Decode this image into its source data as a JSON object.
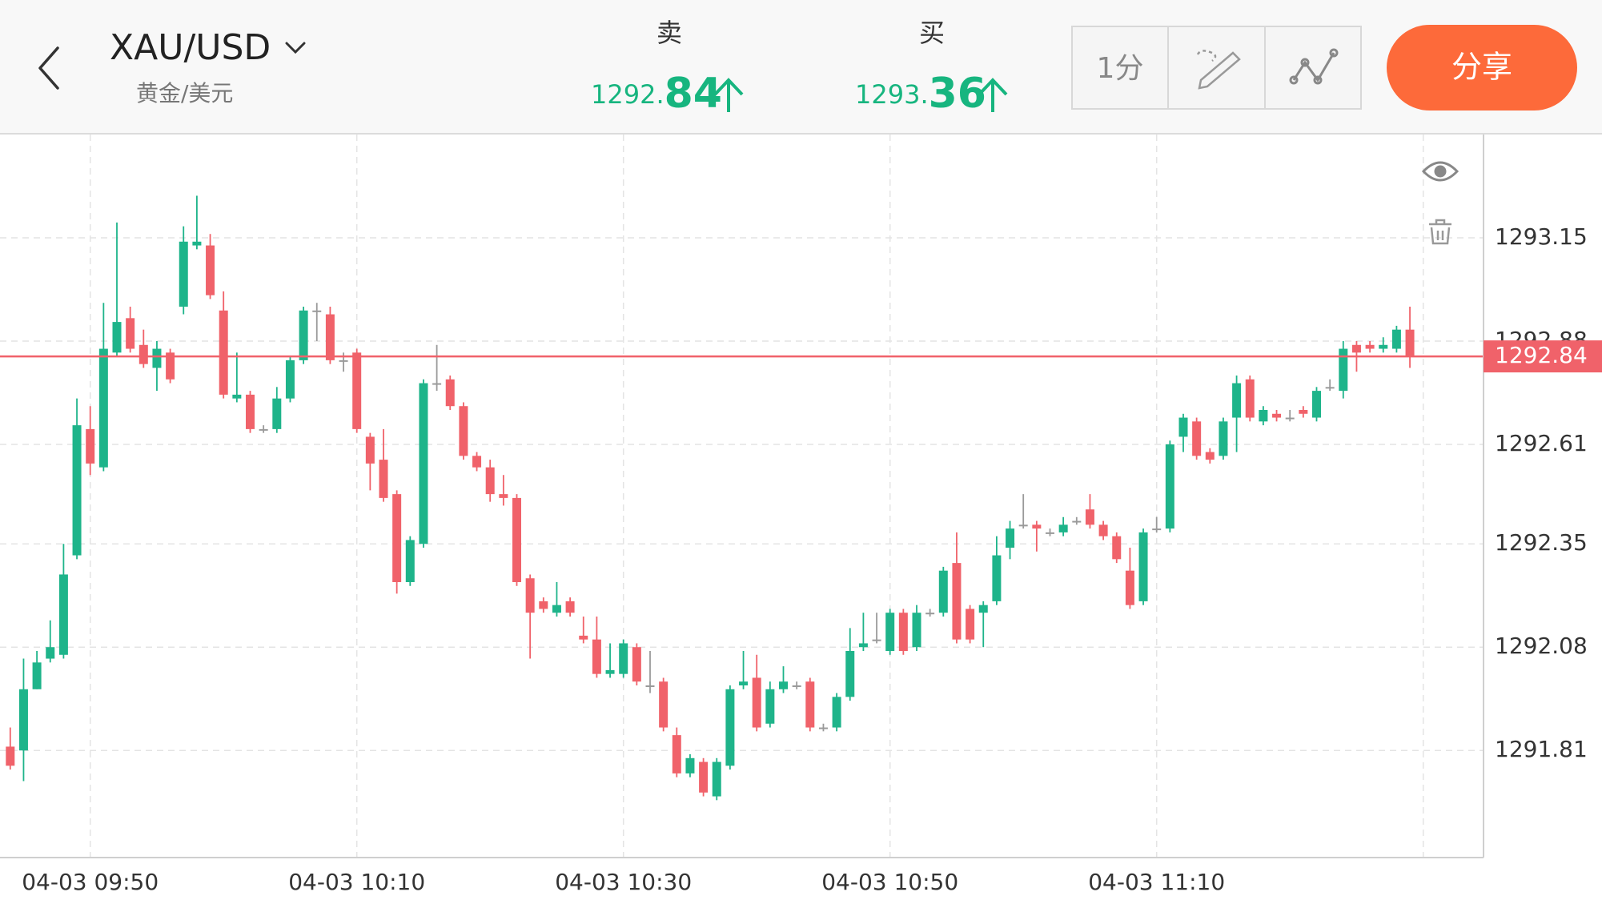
{
  "header": {
    "symbol": "XAU/USD",
    "subtitle": "黄金/美元",
    "sell": {
      "label": "卖",
      "price_main": "1292.",
      "price_fraction": "84"
    },
    "buy": {
      "label": "买",
      "price_main": "1293.",
      "price_fraction": "36"
    }
  },
  "toolbar": {
    "interval": "1分",
    "share": "分享"
  },
  "chart_data": {
    "type": "candlestick",
    "categories": [
      null,
      null,
      null,
      null,
      null,
      null,
      "04-03 09:50",
      null,
      null,
      null,
      null,
      null,
      null,
      null,
      null,
      null,
      null,
      null,
      null,
      null,
      null,
      null,
      null,
      null,
      null,
      null,
      "04-03 10:10",
      null,
      null,
      null,
      null,
      null,
      null,
      null,
      null,
      null,
      null,
      null,
      null,
      null,
      null,
      null,
      null,
      null,
      null,
      null,
      "04-03 10:30",
      null,
      null,
      null,
      null,
      null,
      null,
      null,
      null,
      null,
      null,
      null,
      null,
      null,
      null,
      null,
      null,
      null,
      null,
      null,
      "04-03 10:50",
      null,
      null,
      null,
      null,
      null,
      null,
      null,
      null,
      null,
      null,
      null,
      null,
      null,
      null,
      null,
      null,
      null,
      null,
      null,
      "04-03 11:10",
      null,
      null,
      null,
      null,
      null,
      null,
      null,
      null,
      null,
      null,
      null,
      null,
      null,
      null,
      null,
      null,
      null,
      null,
      null
    ],
    "open": [
      1291.82,
      1291.81,
      1291.97,
      1292.05,
      1292.06,
      1292.32,
      1292.65,
      1292.55,
      1292.85,
      1292.94,
      1292.87,
      1292.81,
      1292.85,
      1292.97,
      1293.13,
      1293.13,
      1292.96,
      1292.73,
      1292.74,
      1292.65,
      1292.65,
      1292.73,
      1292.83,
      1292.96,
      1292.95,
      1292.83,
      1292.85,
      1292.63,
      1292.57,
      1292.48,
      1292.25,
      1292.35,
      1292.77,
      1292.78,
      1292.71,
      1292.58,
      1292.55,
      1292.48,
      1292.47,
      1292.26,
      1292.2,
      1292.17,
      1292.2,
      1292.11,
      1292.1,
      1292.01,
      1292.01,
      1292.08,
      1291.98,
      1291.99,
      1291.85,
      1291.75,
      1291.78,
      1291.69,
      1291.77,
      1291.98,
      1292.0,
      1291.88,
      1291.97,
      1291.98,
      1291.99,
      1291.87,
      1291.87,
      1291.95,
      1292.08,
      1292.1,
      1292.07,
      1292.17,
      1292.08,
      1292.17,
      1292.17,
      1292.3,
      1292.18,
      1292.17,
      1292.2,
      1292.34,
      1292.4,
      1292.4,
      1292.38,
      1292.38,
      1292.41,
      1292.44,
      1292.4,
      1292.37,
      1292.28,
      1292.2,
      1292.39,
      1292.39,
      1292.63,
      1292.67,
      1292.59,
      1292.58,
      1292.68,
      1292.78,
      1292.67,
      1292.69,
      1292.68,
      1292.7,
      1292.68,
      1292.76,
      1292.75,
      1292.87,
      1292.87,
      1292.86,
      1292.86,
      1292.91
    ],
    "high": [
      1291.87,
      1292.05,
      1292.07,
      1292.15,
      1292.35,
      1292.73,
      1292.71,
      1292.98,
      1293.19,
      1292.97,
      1292.91,
      1292.88,
      1292.86,
      1293.18,
      1293.26,
      1293.16,
      1293.01,
      1292.85,
      1292.75,
      1292.66,
      1292.76,
      1292.84,
      1292.97,
      1292.98,
      1292.97,
      1292.85,
      1292.86,
      1292.64,
      1292.65,
      1292.49,
      1292.37,
      1292.78,
      1292.87,
      1292.79,
      1292.72,
      1292.59,
      1292.57,
      1292.53,
      1292.48,
      1292.27,
      1292.21,
      1292.25,
      1292.21,
      1292.16,
      1292.16,
      1292.09,
      1292.1,
      1292.09,
      1292.07,
      1292.0,
      1291.87,
      1291.8,
      1291.79,
      1291.79,
      1291.98,
      1292.07,
      1292.06,
      1291.99,
      1292.03,
      1291.99,
      1292.0,
      1291.88,
      1291.96,
      1292.13,
      1292.17,
      1292.17,
      1292.18,
      1292.18,
      1292.19,
      1292.18,
      1292.29,
      1292.38,
      1292.19,
      1292.2,
      1292.37,
      1292.41,
      1292.48,
      1292.41,
      1292.39,
      1292.42,
      1292.42,
      1292.48,
      1292.41,
      1292.38,
      1292.34,
      1292.39,
      1292.42,
      1292.62,
      1292.69,
      1292.68,
      1292.6,
      1292.68,
      1292.79,
      1292.79,
      1292.71,
      1292.7,
      1292.7,
      1292.71,
      1292.76,
      1292.78,
      1292.88,
      1292.88,
      1292.88,
      1292.89,
      1292.92,
      1292.97
    ],
    "low": [
      1291.76,
      1291.73,
      1291.97,
      1292.04,
      1292.05,
      1292.31,
      1292.53,
      1292.54,
      1292.84,
      1292.85,
      1292.81,
      1292.75,
      1292.77,
      1292.95,
      1293.12,
      1292.99,
      1292.73,
      1292.72,
      1292.64,
      1292.64,
      1292.64,
      1292.72,
      1292.82,
      1292.88,
      1292.82,
      1292.8,
      1292.64,
      1292.49,
      1292.46,
      1292.22,
      1292.24,
      1292.34,
      1292.75,
      1292.7,
      1292.57,
      1292.54,
      1292.46,
      1292.45,
      1292.24,
      1292.05,
      1292.17,
      1292.16,
      1292.16,
      1292.09,
      1292.0,
      1292.0,
      1292.0,
      1291.98,
      1291.96,
      1291.86,
      1291.74,
      1291.74,
      1291.69,
      1291.68,
      1291.76,
      1291.97,
      1291.86,
      1291.87,
      1291.96,
      1291.97,
      1291.86,
      1291.86,
      1291.86,
      1291.94,
      1292.07,
      1292.09,
      1292.06,
      1292.06,
      1292.07,
      1292.16,
      1292.16,
      1292.09,
      1292.09,
      1292.08,
      1292.19,
      1292.31,
      1292.39,
      1292.33,
      1292.37,
      1292.37,
      1292.4,
      1292.39,
      1292.36,
      1292.3,
      1292.18,
      1292.19,
      1292.38,
      1292.38,
      1292.59,
      1292.57,
      1292.56,
      1292.57,
      1292.59,
      1292.67,
      1292.66,
      1292.67,
      1292.67,
      1292.68,
      1292.67,
      1292.75,
      1292.73,
      1292.8,
      1292.85,
      1292.85,
      1292.85,
      1292.81
    ],
    "close": [
      1291.77,
      1291.97,
      1292.04,
      1292.08,
      1292.27,
      1292.66,
      1292.56,
      1292.86,
      1292.93,
      1292.86,
      1292.82,
      1292.86,
      1292.78,
      1293.14,
      1293.14,
      1293.0,
      1292.74,
      1292.74,
      1292.65,
      1292.65,
      1292.73,
      1292.83,
      1292.96,
      1292.96,
      1292.83,
      1292.83,
      1292.65,
      1292.56,
      1292.47,
      1292.25,
      1292.36,
      1292.77,
      1292.77,
      1292.71,
      1292.58,
      1292.55,
      1292.48,
      1292.47,
      1292.25,
      1292.17,
      1292.18,
      1292.19,
      1292.17,
      1292.1,
      1292.01,
      1292.02,
      1292.09,
      1291.99,
      1291.98,
      1291.87,
      1291.75,
      1291.79,
      1291.7,
      1291.78,
      1291.97,
      1291.99,
      1291.87,
      1291.97,
      1291.99,
      1291.98,
      1291.87,
      1291.87,
      1291.95,
      1292.07,
      1292.09,
      1292.1,
      1292.17,
      1292.07,
      1292.17,
      1292.17,
      1292.28,
      1292.1,
      1292.1,
      1292.19,
      1292.32,
      1292.39,
      1292.4,
      1292.39,
      1292.38,
      1292.4,
      1292.41,
      1292.4,
      1292.37,
      1292.31,
      1292.19,
      1292.38,
      1292.39,
      1292.61,
      1292.68,
      1292.58,
      1292.57,
      1292.67,
      1292.77,
      1292.68,
      1292.7,
      1292.68,
      1292.68,
      1292.69,
      1292.75,
      1292.76,
      1292.86,
      1292.85,
      1292.86,
      1292.87,
      1292.91,
      1292.84
    ],
    "up_color": "#1eb48a",
    "down_color": "#f0626a",
    "flat_color": "#9a9a9a",
    "ylim": [
      1291.53,
      1293.42
    ],
    "yticks": [
      1293.15,
      1292.88,
      1292.61,
      1292.35,
      1292.08,
      1291.81
    ],
    "grid": true,
    "current_price": 1292.84,
    "current_price_color": "#f0626a"
  }
}
